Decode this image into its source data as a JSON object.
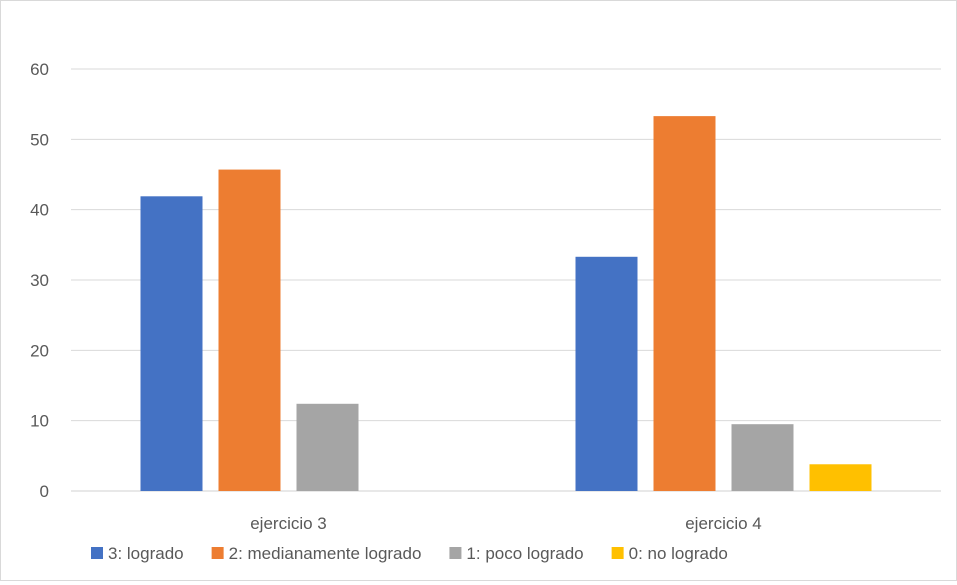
{
  "chart_data": {
    "type": "bar",
    "categories": [
      "ejercicio 3",
      "ejercicio 4"
    ],
    "series": [
      {
        "name": "3: logrado",
        "color": "#4472c4",
        "values": [
          41.9,
          33.3
        ]
      },
      {
        "name": "2: medianamente logrado",
        "color": "#ed7d31",
        "values": [
          45.7,
          53.3
        ]
      },
      {
        "name": "1: poco logrado",
        "color": "#a5a5a5",
        "values": [
          12.4,
          9.5
        ]
      },
      {
        "name": "0: no logrado",
        "color": "#ffc000",
        "values": [
          0,
          3.8
        ]
      }
    ],
    "ylim": [
      0,
      60
    ],
    "yticks": [
      0,
      10,
      20,
      30,
      40,
      50,
      60
    ],
    "grid": true,
    "legend_position": "bottom"
  }
}
